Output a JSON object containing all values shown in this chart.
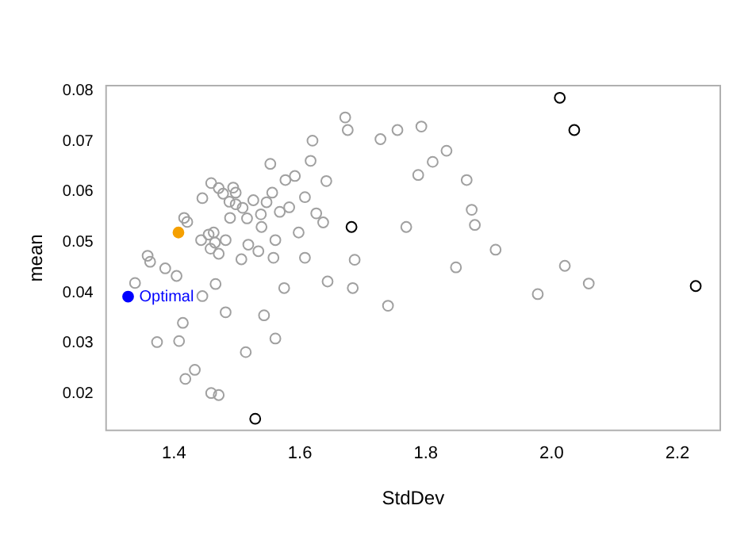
{
  "chart_data": {
    "type": "scatter",
    "xlabel": "StdDev",
    "ylabel": "mean",
    "xlim": [
      1.292,
      2.268
    ],
    "ylim": [
      0.0127,
      0.081
    ],
    "xticks": [
      1.4,
      1.6,
      1.8,
      {
        "value": 2.0,
        "label": "2.0"
      },
      2.2
    ],
    "yticks": [
      0.02,
      0.03,
      0.04,
      0.05,
      0.06,
      0.07,
      0.08
    ],
    "grid": false,
    "legend": false,
    "marker": "circle",
    "series": [
      {
        "color": "#a0a0a0",
        "x": [
          1.672,
          1.676,
          1.62,
          1.728,
          1.755,
          1.793,
          1.553,
          1.617,
          1.788,
          1.577,
          1.592,
          1.642,
          1.459,
          1.471,
          1.494,
          1.478,
          1.498,
          1.445,
          1.556,
          1.526,
          1.488,
          1.498,
          1.509,
          1.547,
          1.608,
          1.583,
          1.568,
          1.538,
          1.626,
          1.489,
          1.516,
          1.637,
          1.416,
          1.421,
          1.539,
          1.598,
          1.769,
          1.455,
          1.463,
          1.443,
          1.465,
          1.482,
          1.561,
          1.518,
          1.458,
          1.471,
          1.534,
          1.358,
          1.362,
          1.386,
          1.507,
          1.558,
          1.608,
          1.687,
          1.404,
          1.338,
          1.644,
          1.684,
          1.74,
          1.575,
          1.466,
          1.445,
          1.482,
          1.543,
          1.414,
          1.373,
          1.408,
          1.561,
          1.514,
          1.433,
          1.418,
          1.459,
          1.471,
          1.833,
          1.811,
          1.865,
          1.873,
          1.878,
          1.911,
          1.848,
          2.021,
          1.978,
          2.059
        ],
        "values": [
          0.0747,
          0.0722,
          0.0701,
          0.0704,
          0.0722,
          0.0729,
          0.0655,
          0.0661,
          0.0633,
          0.0623,
          0.0631,
          0.0621,
          0.0617,
          0.0607,
          0.0608,
          0.0596,
          0.0598,
          0.0587,
          0.0598,
          0.0583,
          0.058,
          0.0575,
          0.0568,
          0.0579,
          0.0589,
          0.0569,
          0.056,
          0.0555,
          0.0557,
          0.0548,
          0.0547,
          0.0539,
          0.0548,
          0.054,
          0.053,
          0.0519,
          0.053,
          0.0515,
          0.0519,
          0.0504,
          0.0499,
          0.0504,
          0.0504,
          0.0495,
          0.0487,
          0.0477,
          0.0482,
          0.0473,
          0.0461,
          0.0448,
          0.0466,
          0.0469,
          0.0469,
          0.0465,
          0.0433,
          0.0419,
          0.0422,
          0.0409,
          0.0374,
          0.0409,
          0.0417,
          0.0393,
          0.0361,
          0.0355,
          0.034,
          0.0302,
          0.0304,
          0.0309,
          0.0282,
          0.0247,
          0.0229,
          0.0201,
          0.0197,
          0.0681,
          0.0659,
          0.0623,
          0.0564,
          0.0534,
          0.0485,
          0.045,
          0.0453,
          0.0397,
          0.0418
        ]
      },
      {
        "color": "#000000",
        "x": [
          1.682,
          1.529,
          2.013,
          2.036,
          2.229
        ],
        "values": [
          0.053,
          0.015,
          0.0786,
          0.0722,
          0.0413
        ]
      },
      {
        "color": "#f5a000",
        "x": [
          1.407
        ],
        "values": [
          0.0519
        ]
      },
      {
        "name": "Optimal",
        "color": "#0000ff",
        "x": [
          1.327
        ],
        "values": [
          0.0392
        ]
      }
    ]
  }
}
